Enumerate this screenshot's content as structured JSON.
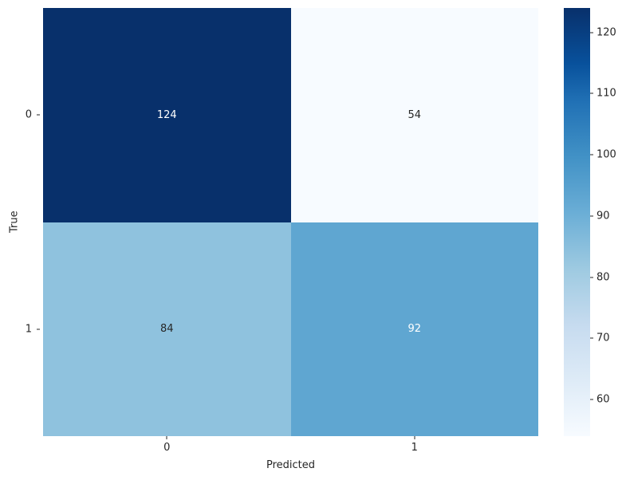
{
  "chart_data": {
    "type": "heatmap",
    "title": "",
    "xlabel": "Predicted",
    "ylabel": "True",
    "x_tick_labels": [
      "0",
      "1"
    ],
    "y_tick_labels": [
      "0",
      "1"
    ],
    "matrix": [
      [
        124,
        54
      ],
      [
        84,
        92
      ]
    ],
    "vmin": 54,
    "vmax": 124,
    "colormap": "Blues",
    "grid": false,
    "legend_position": "right-colorbar",
    "colorbar_ticks": [
      60,
      70,
      80,
      90,
      100,
      110,
      120
    ],
    "cell_colors": [
      [
        "#08306b",
        "#f7fbff"
      ],
      [
        "#8fc2de",
        "#5fa6d1"
      ]
    ],
    "cell_text_colors": [
      [
        "#ffffff",
        "#262626"
      ],
      [
        "#262626",
        "#ffffff"
      ]
    ],
    "colorbar_gradient": [
      {
        "pos": 0,
        "color": "#f7fbff"
      },
      {
        "pos": 13,
        "color": "#deebf7"
      },
      {
        "pos": 26,
        "color": "#c6dbef"
      },
      {
        "pos": 39,
        "color": "#9ecae1"
      },
      {
        "pos": 52,
        "color": "#6baed6"
      },
      {
        "pos": 65,
        "color": "#4292c6"
      },
      {
        "pos": 78,
        "color": "#2171b5"
      },
      {
        "pos": 87,
        "color": "#08519c"
      },
      {
        "pos": 100,
        "color": "#08306b"
      }
    ]
  },
  "figure": {
    "background": "#ffffff",
    "text_color": "#262626"
  }
}
